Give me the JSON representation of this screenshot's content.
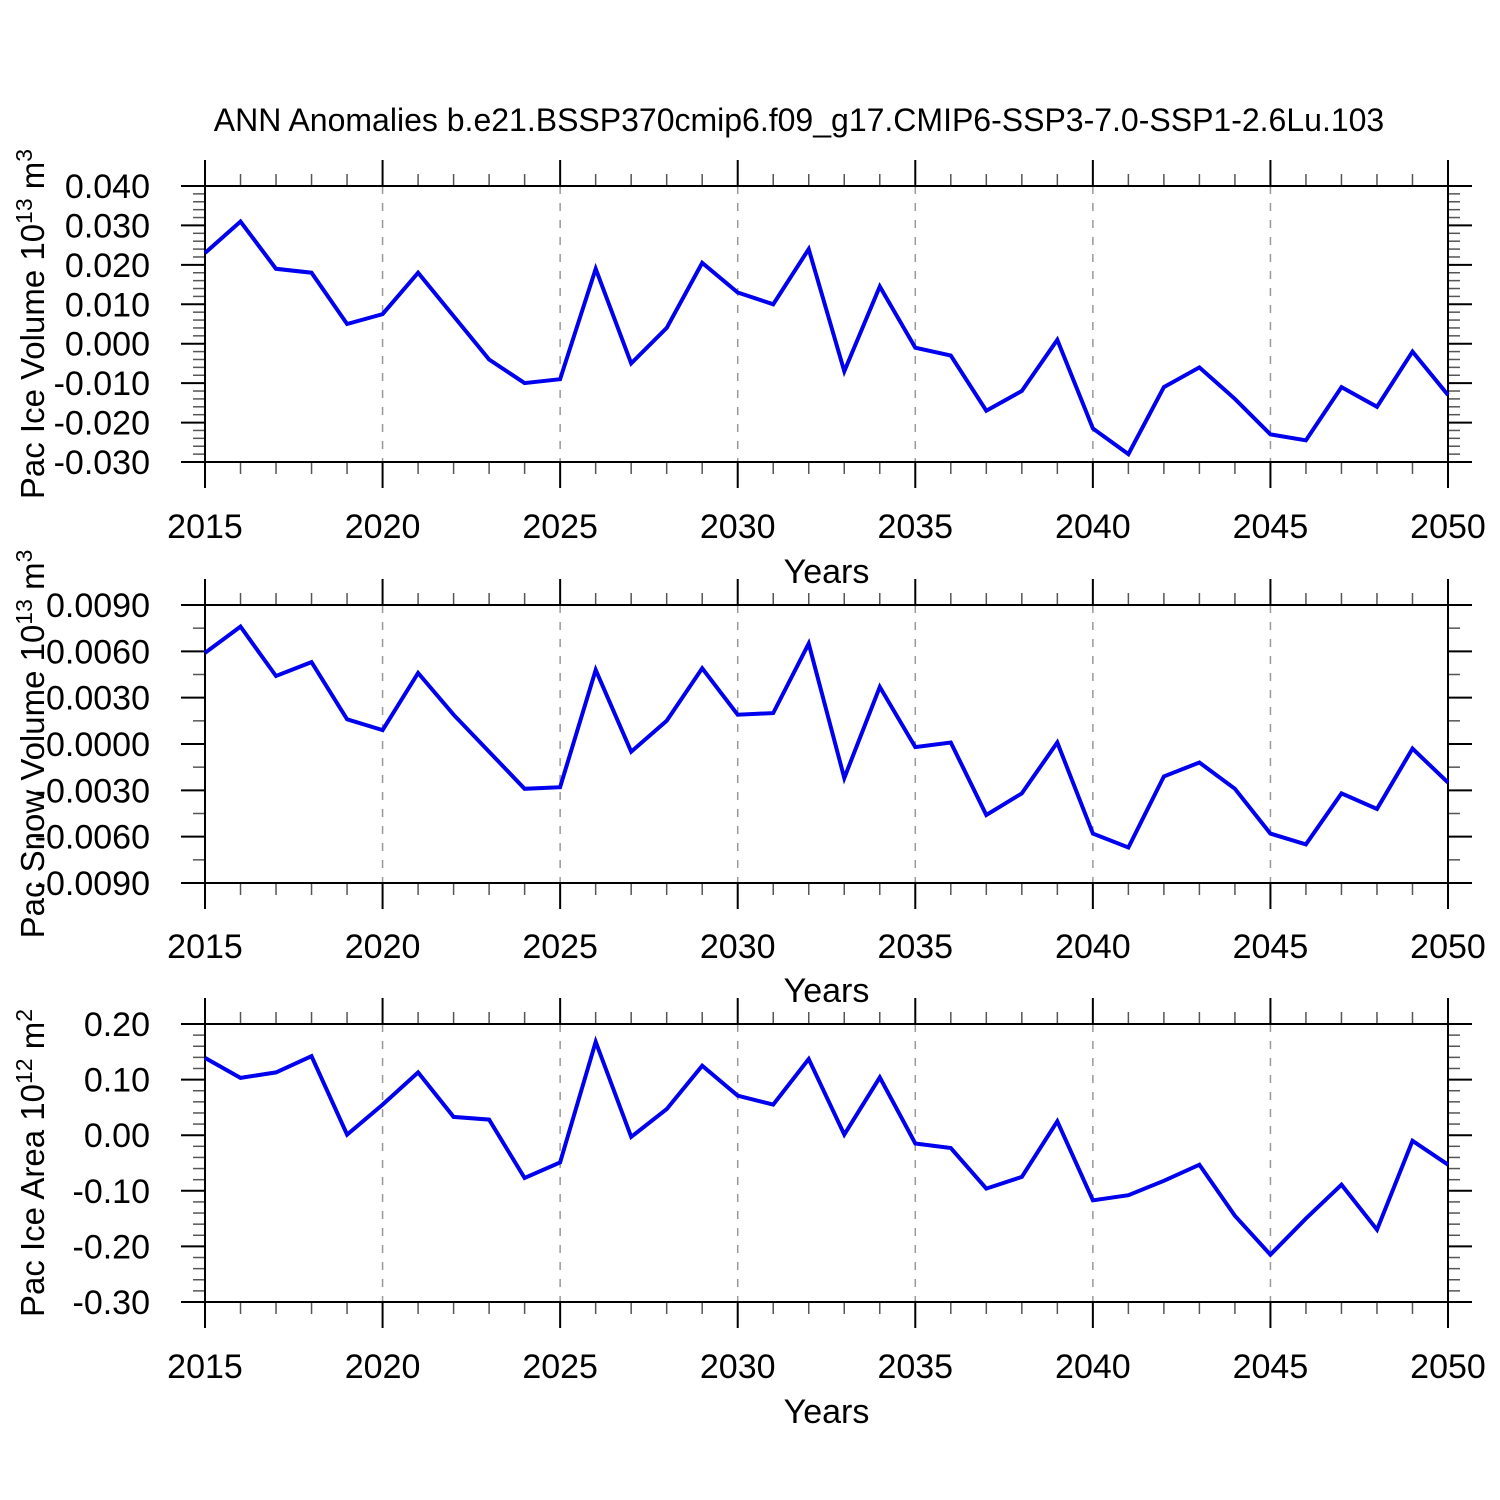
{
  "title": "ANN Anomalies b.e21.BSSP370cmip6.f09_g17.CMIP6-SSP3-7.0-SSP1-2.6Lu.103",
  "line_color": "#0000ee",
  "axis_color": "#000000",
  "minor_tick_color": "#555555",
  "grid_color": "#999999",
  "chart_data": [
    {
      "type": "line",
      "ylabel_parts": [
        {
          "t": "Pac Ice Volume 10"
        },
        {
          "t": "13",
          "sup": true
        },
        {
          "t": " m"
        },
        {
          "t": "3",
          "sup": true
        }
      ],
      "ylabel_text": "Pac Ice Volume 10^13 m^3",
      "xlabel": "Years",
      "x": [
        2015,
        2016,
        2017,
        2018,
        2019,
        2020,
        2021,
        2022,
        2023,
        2024,
        2025,
        2026,
        2027,
        2028,
        2029,
        2030,
        2031,
        2032,
        2033,
        2034,
        2035,
        2036,
        2037,
        2038,
        2039,
        2040,
        2041,
        2042,
        2043,
        2044,
        2045,
        2046,
        2047,
        2048,
        2049,
        2050
      ],
      "values": [
        0.023,
        0.031,
        0.019,
        0.018,
        0.005,
        0.0075,
        0.018,
        0.007,
        -0.004,
        -0.01,
        -0.009,
        0.019,
        -0.005,
        0.004,
        0.0205,
        0.013,
        0.01,
        0.024,
        -0.007,
        0.0145,
        -0.001,
        -0.003,
        -0.017,
        -0.012,
        0.001,
        -0.0215,
        -0.028,
        -0.011,
        -0.006,
        -0.014,
        -0.023,
        -0.0245,
        -0.011,
        -0.016,
        -0.002,
        -0.013
      ],
      "ylim": [
        -0.03,
        0.04
      ],
      "ytick_values": [
        0.04,
        0.03,
        0.02,
        0.01,
        0.0,
        -0.01,
        -0.02,
        -0.03
      ],
      "ytick_labels": [
        "0.040",
        "0.030",
        "0.020",
        "0.010",
        "0.000",
        "-0.010",
        "-0.020",
        "-0.030"
      ],
      "yminor_step": 0.002,
      "xticks": [
        2015,
        2020,
        2025,
        2030,
        2035,
        2040,
        2045,
        2050
      ],
      "xtick_labels": [
        "2015",
        "2020",
        "2025",
        "2030",
        "2035",
        "2040",
        "2045",
        "2050"
      ],
      "xminor_step": 1,
      "grid_x": [
        2020,
        2025,
        2030,
        2035,
        2040,
        2045
      ]
    },
    {
      "type": "line",
      "ylabel_parts": [
        {
          "t": "Pac Snow Volume 10"
        },
        {
          "t": "13",
          "sup": true
        },
        {
          "t": " m"
        },
        {
          "t": "3",
          "sup": true
        }
      ],
      "ylabel_text": "Pac Snow Volume 10^13 m^3",
      "xlabel": "Years",
      "x": [
        2015,
        2016,
        2017,
        2018,
        2019,
        2020,
        2021,
        2022,
        2023,
        2024,
        2025,
        2026,
        2027,
        2028,
        2029,
        2030,
        2031,
        2032,
        2033,
        2034,
        2035,
        2036,
        2037,
        2038,
        2039,
        2040,
        2041,
        2042,
        2043,
        2044,
        2045,
        2046,
        2047,
        2048,
        2049,
        2050
      ],
      "values": [
        0.0059,
        0.0076,
        0.0044,
        0.0053,
        0.0016,
        0.0009,
        0.0046,
        0.0019,
        -0.0005,
        -0.0029,
        -0.0028,
        0.0048,
        -0.0005,
        0.0015,
        0.0049,
        0.0019,
        0.002,
        0.0065,
        -0.0022,
        0.0037,
        -0.0002,
        0.0001,
        -0.0046,
        -0.0032,
        0.0001,
        -0.0058,
        -0.0067,
        -0.0021,
        -0.0012,
        -0.0029,
        -0.0058,
        -0.0065,
        -0.0032,
        -0.0042,
        -0.0003,
        -0.0025
      ],
      "ylim": [
        -0.009,
        0.009
      ],
      "ytick_values": [
        0.009,
        0.006,
        0.003,
        0.0,
        -0.003,
        -0.006,
        -0.009
      ],
      "ytick_labels": [
        "0.0090",
        "0.0060",
        "0.0030",
        "0.0000",
        "-0.0030",
        "-0.0060",
        "-0.0090"
      ],
      "yminor_step": 0.0015,
      "xticks": [
        2015,
        2020,
        2025,
        2030,
        2035,
        2040,
        2045,
        2050
      ],
      "xtick_labels": [
        "2015",
        "2020",
        "2025",
        "2030",
        "2035",
        "2040",
        "2045",
        "2050"
      ],
      "xminor_step": 1,
      "grid_x": [
        2020,
        2025,
        2030,
        2035,
        2040,
        2045
      ]
    },
    {
      "type": "line",
      "ylabel_parts": [
        {
          "t": "Pac Ice Area 10"
        },
        {
          "t": "12",
          "sup": true
        },
        {
          "t": " m"
        },
        {
          "t": "2",
          "sup": true
        }
      ],
      "ylabel_text": "Pac Ice Area 10^12 m^2",
      "xlabel": "Years",
      "x": [
        2015,
        2016,
        2017,
        2018,
        2019,
        2020,
        2021,
        2022,
        2023,
        2024,
        2025,
        2026,
        2027,
        2028,
        2029,
        2030,
        2031,
        2032,
        2033,
        2034,
        2035,
        2036,
        2037,
        2038,
        2039,
        2040,
        2041,
        2042,
        2043,
        2044,
        2045,
        2046,
        2047,
        2048,
        2049,
        2050
      ],
      "values": [
        0.139,
        0.103,
        0.113,
        0.142,
        0.001,
        0.055,
        0.113,
        0.033,
        0.028,
        -0.077,
        -0.049,
        0.168,
        -0.003,
        0.047,
        0.125,
        0.071,
        0.055,
        0.137,
        0.001,
        0.104,
        -0.015,
        -0.023,
        -0.096,
        -0.075,
        0.025,
        -0.117,
        -0.108,
        -0.082,
        -0.053,
        -0.145,
        -0.215,
        -0.15,
        -0.089,
        -0.17,
        -0.01,
        -0.053
      ],
      "ylim": [
        -0.3,
        0.2
      ],
      "ytick_values": [
        0.2,
        0.1,
        0.0,
        -0.1,
        -0.2,
        -0.3
      ],
      "ytick_labels": [
        "0.20",
        "0.10",
        "0.00",
        "-0.10",
        "-0.20",
        "-0.30"
      ],
      "yminor_step": 0.02,
      "xticks": [
        2015,
        2020,
        2025,
        2030,
        2035,
        2040,
        2045,
        2050
      ],
      "xtick_labels": [
        "2015",
        "2020",
        "2025",
        "2030",
        "2035",
        "2040",
        "2045",
        "2050"
      ],
      "xminor_step": 1,
      "grid_x": [
        2020,
        2025,
        2030,
        2035,
        2040,
        2045
      ]
    }
  ]
}
